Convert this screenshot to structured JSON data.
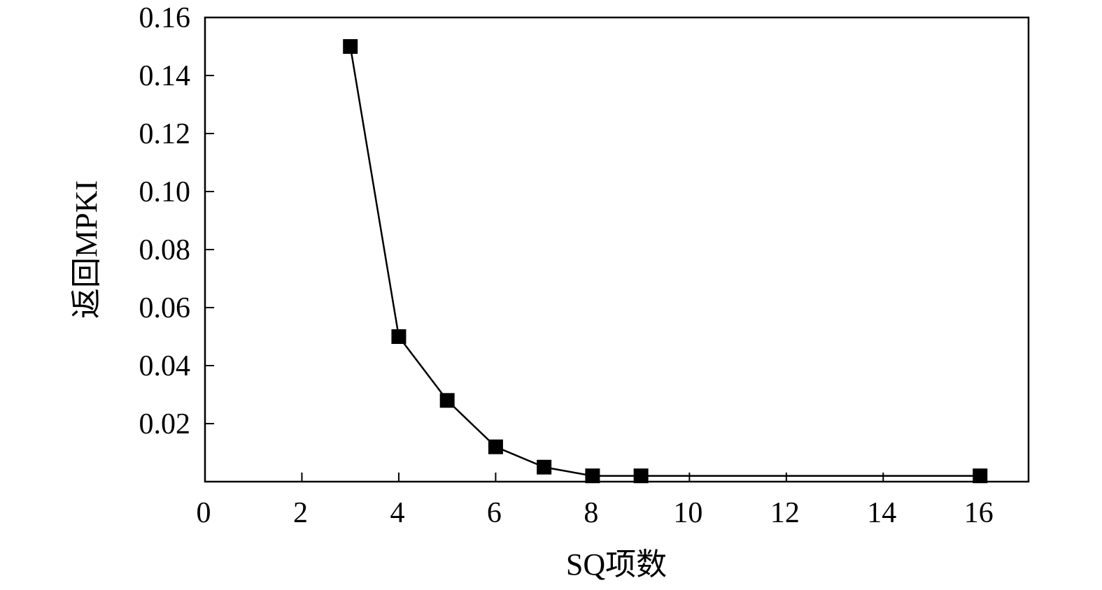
{
  "chart_data": {
    "type": "line",
    "title": "",
    "xlabel": "SQ项数",
    "ylabel": "返回MPKI",
    "xlim": [
      0,
      17
    ],
    "ylim": [
      0,
      0.16
    ],
    "x_ticks": [
      0,
      2,
      4,
      6,
      8,
      10,
      12,
      14,
      16
    ],
    "x_tick_labels": [
      "0",
      "2",
      "4",
      "6",
      "8",
      "10",
      "12",
      "14",
      "16"
    ],
    "y_ticks": [
      0.02,
      0.04,
      0.06,
      0.08,
      0.1,
      0.12,
      0.14,
      0.16
    ],
    "y_tick_labels": [
      "0.02",
      "0.04",
      "0.06",
      "0.08",
      "0.10",
      "0.12",
      "0.14",
      "0.16"
    ],
    "grid": false,
    "legend": "none",
    "marker": "square",
    "color": "#000000",
    "series": [
      {
        "x": [
          3,
          4,
          5,
          6,
          7,
          8,
          9,
          16
        ],
        "y": [
          0.15,
          0.05,
          0.028,
          0.012,
          0.005,
          0.002,
          0.002,
          0.002
        ]
      }
    ]
  }
}
